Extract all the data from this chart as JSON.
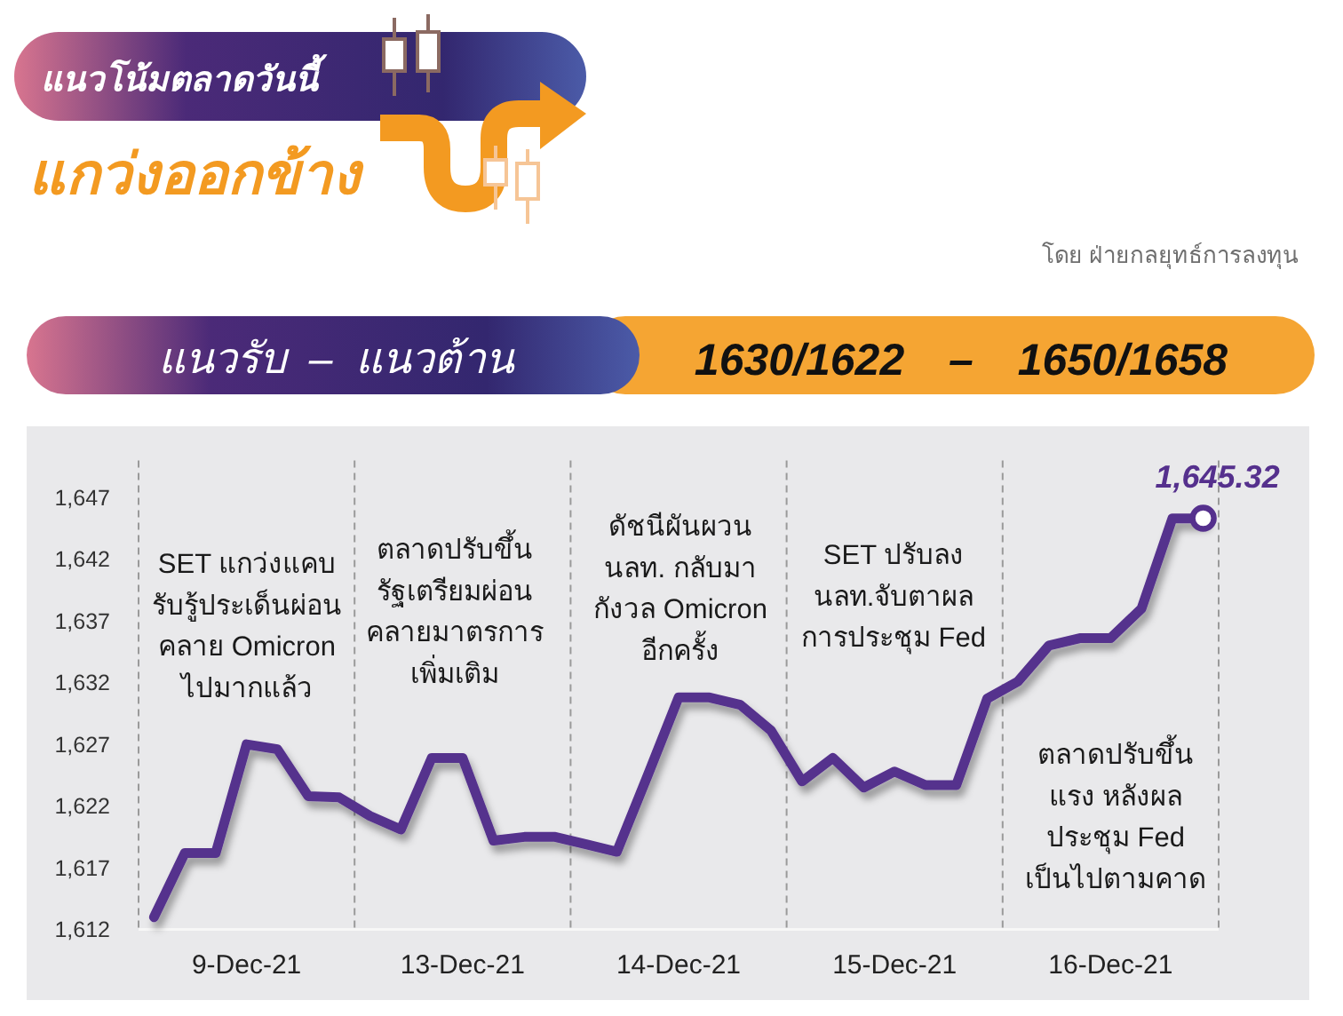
{
  "chart_data": {
    "type": "line",
    "title": "แนวโน้มตลาดวันนี้",
    "subtitle": "แกว่งออกข้าง",
    "categories": [
      null,
      null,
      null,
      "9-Dec-21",
      null,
      null,
      null,
      null,
      null,
      null,
      "13-Dec-21",
      null,
      null,
      null,
      null,
      null,
      null,
      "14-Dec-21",
      null,
      null,
      null,
      null,
      null,
      null,
      "15-Dec-21",
      null,
      null,
      null,
      null,
      null,
      null,
      "16-Dec-21",
      null,
      null,
      null
    ],
    "series": [
      {
        "color": "#55308d",
        "values": [
          1613.0,
          1618.2,
          1618.2,
          1627.0,
          1626.6,
          1622.8,
          1622.7,
          1621.2,
          1620.1,
          1625.9,
          1625.9,
          1619.2,
          1619.5,
          1619.5,
          1618.9,
          1618.3,
          1624.5,
          1630.8,
          1630.8,
          1630.2,
          1628.1,
          1624.0,
          1625.9,
          1623.5,
          1624.8,
          1623.7,
          1623.7,
          1630.7,
          1632.1,
          1635.0,
          1635.6,
          1635.6,
          1638.0,
          1645.3,
          1645.3
        ]
      },
      {
        "type": "scatter",
        "color": "#55308d",
        "marker": "circle",
        "values": [
          null,
          null,
          null,
          null,
          null,
          null,
          null,
          null,
          null,
          null,
          null,
          null,
          null,
          null,
          null,
          null,
          null,
          null,
          null,
          null,
          null,
          null,
          null,
          null,
          null,
          null,
          null,
          null,
          null,
          null,
          null,
          null,
          null,
          null,
          1645.32
        ],
        "value_labels": [
          null,
          null,
          null,
          null,
          null,
          null,
          null,
          null,
          null,
          null,
          null,
          null,
          null,
          null,
          null,
          null,
          null,
          null,
          null,
          null,
          null,
          null,
          null,
          null,
          null,
          null,
          null,
          null,
          null,
          null,
          null,
          null,
          null,
          null,
          "1,645.32"
        ]
      }
    ],
    "ylim": [
      1612,
      1650
    ],
    "yticks": [
      {
        "value": 1612,
        "label": "1,612"
      },
      {
        "value": 1617,
        "label": "1,617"
      },
      {
        "value": 1622,
        "label": "1,622"
      },
      {
        "value": 1627,
        "label": "1,627"
      },
      {
        "value": 1632,
        "label": "1,632"
      },
      {
        "value": 1637,
        "label": "1,637"
      },
      {
        "value": 1642,
        "label": "1,642"
      },
      {
        "value": 1647,
        "label": "1,647"
      }
    ],
    "annotations": [
      "โดย ฝ่ายกลยุทธ์การลงทุน",
      "แนวรับ – แนวต้าน",
      "1630/1622 – 1650/1658",
      "SET แกว่งแคบ\nรับรู้ประเด็นผ่อน\nคลาย Omicron\nไปมากแล้ว",
      "ตลาดปรับขึ้น\nรัฐเตรียมผ่อน\nคลายมาตรการ\nเพิ่มเติม",
      "ดัชนีผันผวน\nนลท. กลับมา\nกังวล Omicron\nอีกครั้ง",
      "SET ปรับลง\nนลท.จับตาผล\nการประชุม Fed",
      "ตลาดปรับขึ้น\nแรง หลังผล\nประชุม Fed\nเป็นไปตามคาด"
    ]
  }
}
